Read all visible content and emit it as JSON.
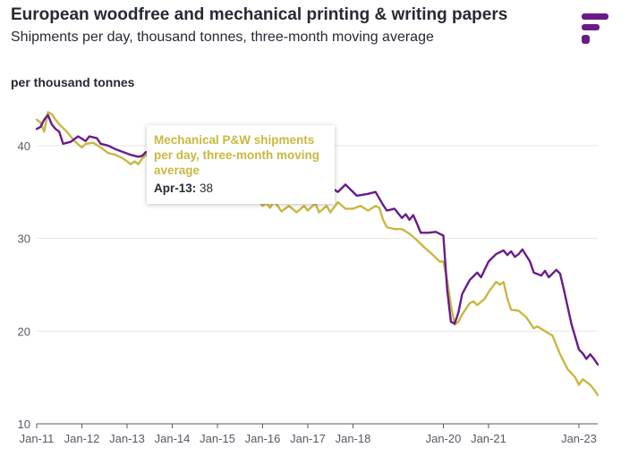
{
  "header": {
    "title": "European woodfree and mechanical printing & writing papers",
    "subtitle": "Shipments per day, thousand tonnes, three-month moving average",
    "unit_label": "per thousand tonnes"
  },
  "brand": {
    "logo_icon": "brand-f-logo-icon",
    "logo_color": "#6a1b8a"
  },
  "tooltip": {
    "series": "Mechanical P&W shipments per day, three-month moving average",
    "date_label": "Apr-13:",
    "value": "38"
  },
  "chart_data": {
    "type": "line",
    "title": "European woodfree and mechanical printing & writing papers",
    "subtitle": "Shipments per day, thousand tonnes, three-month moving average",
    "ylabel": "per thousand tonnes",
    "xlabel": "",
    "ylim": [
      10,
      45
    ],
    "xlim": [
      "2011-01",
      "2023-06"
    ],
    "grid": true,
    "y_ticks": [
      10,
      20,
      30,
      40
    ],
    "x_ticks": [
      {
        "label": "Jan-11",
        "date": "2011-01"
      },
      {
        "label": "Jan-12",
        "date": "2012-01"
      },
      {
        "label": "Jan-13",
        "date": "2013-01"
      },
      {
        "label": "Jan-14",
        "date": "2014-01"
      },
      {
        "label": "Jan-15",
        "date": "2015-01"
      },
      {
        "label": "Jan-16",
        "date": "2016-01"
      },
      {
        "label": "Jan-17",
        "date": "2017-01"
      },
      {
        "label": "Jan-18",
        "date": "2018-01"
      },
      {
        "label": "Jan-20",
        "date": "2020-01"
      },
      {
        "label": "Jan-21",
        "date": "2021-01"
      },
      {
        "label": "Jan-23",
        "date": "2023-01"
      }
    ],
    "series": [
      {
        "color": "#6a1b8a",
        "points": [
          [
            "2011-01",
            41.8
          ],
          [
            "2011-02",
            42.0
          ],
          [
            "2011-03",
            42.8
          ],
          [
            "2011-04",
            43.3
          ],
          [
            "2011-05",
            42.3
          ],
          [
            "2011-06",
            41.8
          ],
          [
            "2011-07",
            41.5
          ],
          [
            "2011-08",
            40.2
          ],
          [
            "2011-10",
            40.4
          ],
          [
            "2011-12",
            41.0
          ],
          [
            "2012-02",
            40.5
          ],
          [
            "2012-03",
            41.0
          ],
          [
            "2012-05",
            40.8
          ],
          [
            "2012-06",
            40.2
          ],
          [
            "2012-08",
            40.0
          ],
          [
            "2012-10",
            39.6
          ],
          [
            "2012-12",
            39.3
          ],
          [
            "2013-02",
            39.0
          ],
          [
            "2013-04",
            38.8
          ],
          [
            "2013-05",
            38.9
          ],
          [
            "2013-06",
            39.3
          ],
          [
            "2014-01",
            38.4
          ],
          [
            "2014-06",
            38.0
          ],
          [
            "2015-01",
            37.5
          ],
          [
            "2015-06",
            36.9
          ],
          [
            "2016-01",
            36.4
          ],
          [
            "2016-06",
            36.0
          ],
          [
            "2017-01",
            35.8
          ],
          [
            "2017-06",
            35.8
          ],
          [
            "2017-09",
            35.0
          ],
          [
            "2017-11",
            35.8
          ],
          [
            "2018-02",
            34.6
          ],
          [
            "2018-05",
            34.8
          ],
          [
            "2018-07",
            35.0
          ],
          [
            "2018-09",
            33.6
          ],
          [
            "2018-10",
            33.0
          ],
          [
            "2018-12",
            33.2
          ],
          [
            "2019-02",
            32.2
          ],
          [
            "2019-03",
            32.6
          ],
          [
            "2019-04",
            32.0
          ],
          [
            "2019-05",
            32.5
          ],
          [
            "2019-06",
            31.6
          ],
          [
            "2019-07",
            30.6
          ],
          [
            "2019-09",
            30.6
          ],
          [
            "2019-11",
            30.7
          ],
          [
            "2019-12",
            30.5
          ],
          [
            "2020-01",
            30.3
          ],
          [
            "2020-02",
            24.5
          ],
          [
            "2020-03",
            21.0
          ],
          [
            "2020-04",
            20.8
          ],
          [
            "2020-05",
            22.0
          ],
          [
            "2020-06",
            24.0
          ],
          [
            "2020-08",
            25.5
          ],
          [
            "2020-10",
            26.3
          ],
          [
            "2020-11",
            25.8
          ],
          [
            "2021-01",
            27.5
          ],
          [
            "2021-03",
            28.3
          ],
          [
            "2021-05",
            28.7
          ],
          [
            "2021-06",
            28.2
          ],
          [
            "2021-07",
            28.6
          ],
          [
            "2021-08",
            28.0
          ],
          [
            "2021-09",
            28.3
          ],
          [
            "2021-10",
            28.8
          ],
          [
            "2021-12",
            27.5
          ],
          [
            "2022-01",
            26.3
          ],
          [
            "2022-03",
            26.0
          ],
          [
            "2022-04",
            26.5
          ],
          [
            "2022-05",
            25.8
          ],
          [
            "2022-07",
            26.6
          ],
          [
            "2022-08",
            26.2
          ],
          [
            "2022-09",
            24.5
          ],
          [
            "2022-11",
            20.8
          ],
          [
            "2023-01",
            18.0
          ],
          [
            "2023-02",
            17.6
          ],
          [
            "2023-03",
            17.0
          ],
          [
            "2023-04",
            17.5
          ],
          [
            "2023-05",
            17.0
          ],
          [
            "2023-06",
            16.4
          ]
        ]
      },
      {
        "name": "Mechanical P&W shipments per day, three-month moving average",
        "color": "#c9b842",
        "points": [
          [
            "2011-01",
            42.8
          ],
          [
            "2011-02",
            42.5
          ],
          [
            "2011-03",
            41.5
          ],
          [
            "2011-04",
            43.6
          ],
          [
            "2011-05",
            43.4
          ],
          [
            "2011-06",
            42.8
          ],
          [
            "2011-07",
            42.3
          ],
          [
            "2011-09",
            41.5
          ],
          [
            "2011-11",
            40.5
          ],
          [
            "2012-01",
            39.8
          ],
          [
            "2012-02",
            40.2
          ],
          [
            "2012-04",
            40.3
          ],
          [
            "2012-06",
            39.8
          ],
          [
            "2012-08",
            39.2
          ],
          [
            "2012-10",
            39.0
          ],
          [
            "2012-12",
            38.6
          ],
          [
            "2013-01",
            38.3
          ],
          [
            "2013-02",
            38.0
          ],
          [
            "2013-03",
            38.3
          ],
          [
            "2013-04",
            38.0
          ],
          [
            "2013-05",
            38.6
          ],
          [
            "2013-06",
            39.0
          ],
          [
            "2014-01",
            37.6
          ],
          [
            "2014-06",
            37.0
          ],
          [
            "2015-01",
            36.3
          ],
          [
            "2015-06",
            35.4
          ],
          [
            "2015-11",
            34.8
          ],
          [
            "2015-12",
            34.0
          ],
          [
            "2016-01",
            33.5
          ],
          [
            "2016-02",
            33.8
          ],
          [
            "2016-03",
            33.3
          ],
          [
            "2016-04",
            34.0
          ],
          [
            "2016-05",
            33.5
          ],
          [
            "2016-06",
            32.9
          ],
          [
            "2016-08",
            33.5
          ],
          [
            "2016-10",
            32.8
          ],
          [
            "2016-12",
            33.5
          ],
          [
            "2017-01",
            33.0
          ],
          [
            "2017-03",
            33.8
          ],
          [
            "2017-04",
            32.8
          ],
          [
            "2017-06",
            33.5
          ],
          [
            "2017-07",
            32.8
          ],
          [
            "2017-09",
            33.9
          ],
          [
            "2017-11",
            33.2
          ],
          [
            "2018-01",
            33.2
          ],
          [
            "2018-03",
            33.5
          ],
          [
            "2018-05",
            33.0
          ],
          [
            "2018-07",
            33.5
          ],
          [
            "2018-08",
            33.3
          ],
          [
            "2018-09",
            32.0
          ],
          [
            "2018-10",
            31.2
          ],
          [
            "2018-12",
            31.0
          ],
          [
            "2019-02",
            31.0
          ],
          [
            "2019-04",
            30.5
          ],
          [
            "2019-06",
            29.8
          ],
          [
            "2019-08",
            29.0
          ],
          [
            "2019-10",
            28.3
          ],
          [
            "2019-12",
            27.5
          ],
          [
            "2020-01",
            27.5
          ],
          [
            "2020-02",
            25.5
          ],
          [
            "2020-03",
            22.8
          ],
          [
            "2020-04",
            20.7
          ],
          [
            "2020-05",
            21.0
          ],
          [
            "2020-06",
            21.8
          ],
          [
            "2020-08",
            23.0
          ],
          [
            "2020-09",
            23.2
          ],
          [
            "2020-10",
            22.8
          ],
          [
            "2020-12",
            23.5
          ],
          [
            "2021-01",
            24.2
          ],
          [
            "2021-03",
            25.3
          ],
          [
            "2021-04",
            25.0
          ],
          [
            "2021-05",
            25.3
          ],
          [
            "2021-06",
            23.5
          ],
          [
            "2021-07",
            22.3
          ],
          [
            "2021-09",
            22.2
          ],
          [
            "2021-11",
            21.5
          ],
          [
            "2022-01",
            20.3
          ],
          [
            "2022-02",
            20.5
          ],
          [
            "2022-04",
            20.0
          ],
          [
            "2022-06",
            19.5
          ],
          [
            "2022-08",
            17.5
          ],
          [
            "2022-10",
            15.9
          ],
          [
            "2022-12",
            15.0
          ],
          [
            "2023-01",
            14.2
          ],
          [
            "2023-02",
            14.8
          ],
          [
            "2023-04",
            14.2
          ],
          [
            "2023-05",
            13.7
          ],
          [
            "2023-06",
            13.1
          ]
        ]
      }
    ]
  }
}
